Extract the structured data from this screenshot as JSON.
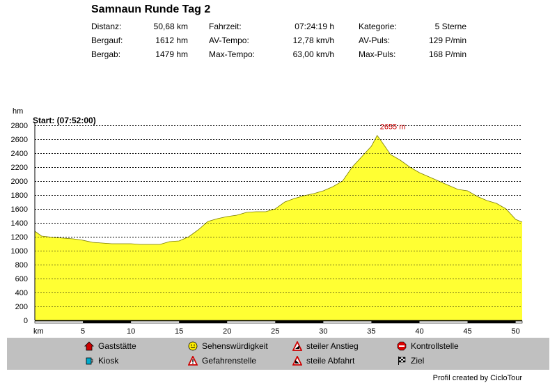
{
  "title": "Samnaun Runde Tag 2",
  "stats": [
    {
      "label": "Distanz:",
      "value": "50,68 km"
    },
    {
      "label": "Bergauf:",
      "value": "1612 hm"
    },
    {
      "label": "Bergab:",
      "value": "1479 hm"
    },
    {
      "label": "Fahrzeit:",
      "value": "07:24:19 h"
    },
    {
      "label": "AV-Tempo:",
      "value": "12,78 km/h"
    },
    {
      "label": "Max-Tempo:",
      "value": "63,00 km/h"
    },
    {
      "label": "Kategorie:",
      "value": "5 Sterne"
    },
    {
      "label": "AV-Puls:",
      "value": "129 P/min"
    },
    {
      "label": "Max-Puls:",
      "value": "168 P/min"
    }
  ],
  "chart_data": {
    "type": "area",
    "start_label": "Start: (07:52:00)",
    "ylabel": "hm",
    "xlabel": "km",
    "ylim": [
      0,
      2800
    ],
    "xlim": [
      0,
      50.68
    ],
    "yticks": [
      0,
      200,
      400,
      600,
      800,
      1000,
      1200,
      1400,
      1600,
      1800,
      2000,
      2200,
      2400,
      2600,
      2800
    ],
    "xticks": [
      5,
      10,
      15,
      20,
      25,
      30,
      35,
      40,
      45,
      50
    ],
    "grid": "horizontal dashed",
    "fill_color": "#ffff33",
    "max_label": "2655 m",
    "max_point": {
      "x": 35.6,
      "y": 2655
    },
    "x": [
      0,
      0.7,
      2,
      4,
      5,
      6,
      7,
      8,
      9,
      10,
      11,
      12,
      13,
      14,
      15,
      16,
      17,
      18,
      19,
      20,
      21,
      22,
      23,
      24,
      25,
      26,
      27,
      28,
      29,
      30,
      31,
      32,
      33,
      34,
      35,
      35.6,
      36,
      37,
      38,
      39,
      40,
      41,
      42,
      43,
      44,
      45,
      46,
      47,
      48,
      49,
      50,
      50.68
    ],
    "y": [
      1280,
      1210,
      1190,
      1170,
      1150,
      1120,
      1110,
      1100,
      1100,
      1100,
      1090,
      1090,
      1090,
      1130,
      1140,
      1200,
      1300,
      1420,
      1460,
      1490,
      1510,
      1550,
      1560,
      1560,
      1600,
      1700,
      1750,
      1790,
      1820,
      1860,
      1920,
      2000,
      2200,
      2350,
      2500,
      2655,
      2580,
      2380,
      2300,
      2200,
      2120,
      2060,
      2000,
      1940,
      1880,
      1860,
      1780,
      1720,
      1680,
      1600,
      1450,
      1410
    ]
  },
  "legend": [
    {
      "label": "Gaststätte",
      "icon": "house-icon"
    },
    {
      "label": "Kiosk",
      "icon": "cup-icon"
    },
    {
      "label": "Sehenswürdigkeit",
      "icon": "smiley-icon"
    },
    {
      "label": "Gefahrenstelle",
      "icon": "warning-icon"
    },
    {
      "label": "steiler Anstieg",
      "icon": "steep-climb-icon"
    },
    {
      "label": "steile Abfahrt",
      "icon": "steep-descent-icon"
    },
    {
      "label": "Kontrollstelle",
      "icon": "stop-icon"
    },
    {
      "label": "Ziel",
      "icon": "checkered-flag-icon"
    }
  ],
  "credit": "Profil created by CicloTour"
}
